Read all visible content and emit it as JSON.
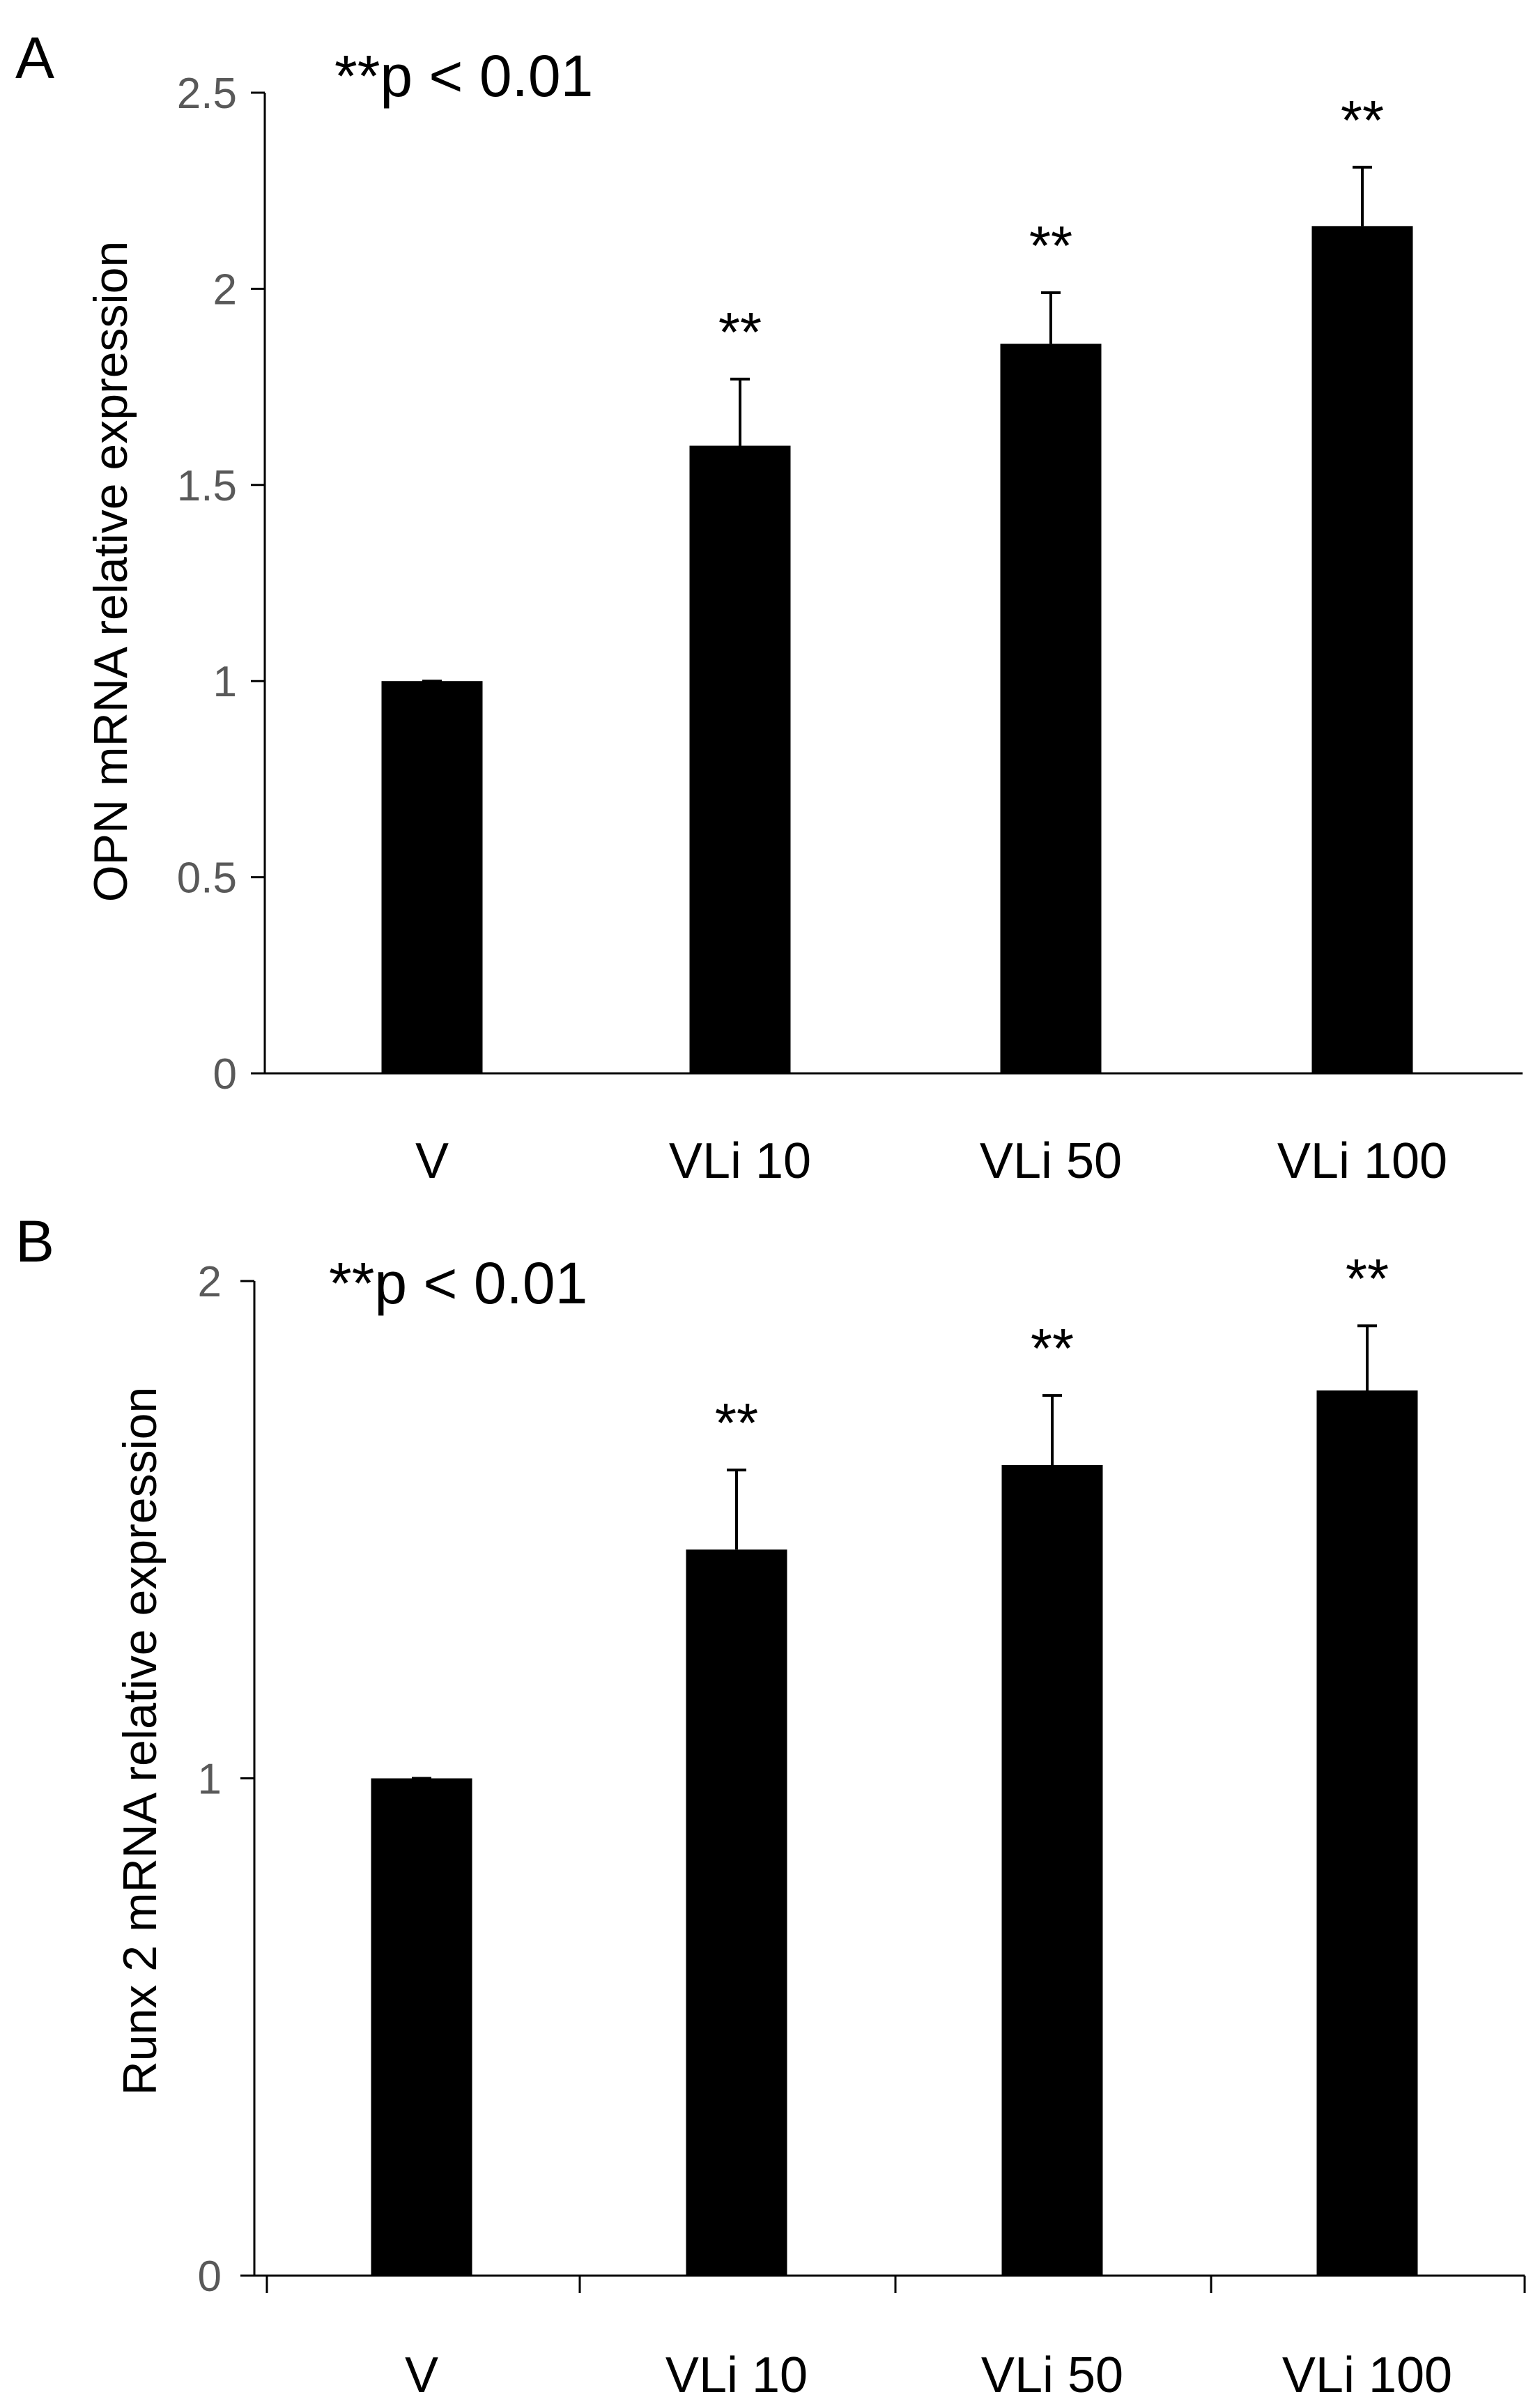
{
  "chart_data": [
    {
      "panel": "A",
      "type": "bar",
      "categories": [
        "V",
        "VLi 10",
        "VLi 50",
        "VLi 100"
      ],
      "values": [
        1.0,
        1.6,
        1.86,
        2.16
      ],
      "errors": [
        0.0,
        0.17,
        0.13,
        0.15
      ],
      "significance": [
        "",
        "**",
        "**",
        "**"
      ],
      "annotation": "**p < 0.01",
      "title": "",
      "xlabel": "",
      "ylabel": "OPN mRNA relative expression",
      "ylim": [
        0,
        2.5
      ],
      "yticks": [
        0,
        0.5,
        1,
        1.5,
        2,
        2.5
      ],
      "ytick_labels": [
        "0",
        "0.5",
        "1",
        "1.5",
        "2",
        "2.5"
      ],
      "grid": false,
      "bar_color": "#000000"
    },
    {
      "panel": "B",
      "type": "bar",
      "categories": [
        "V",
        "VLi 10",
        "VLi 50",
        "VLi 100"
      ],
      "values": [
        1.0,
        1.46,
        1.63,
        1.78
      ],
      "errors": [
        0.0,
        0.16,
        0.14,
        0.13
      ],
      "significance": [
        "",
        "**",
        "**",
        "**"
      ],
      "annotation": "**p < 0.01",
      "title": "",
      "xlabel": "",
      "ylabel": "Runx 2 mRNA relative expression",
      "ylim": [
        0,
        2
      ],
      "yticks": [
        0,
        1,
        2
      ],
      "ytick_labels": [
        "0",
        "1",
        "2"
      ],
      "grid": false,
      "bar_color": "#000000"
    }
  ]
}
